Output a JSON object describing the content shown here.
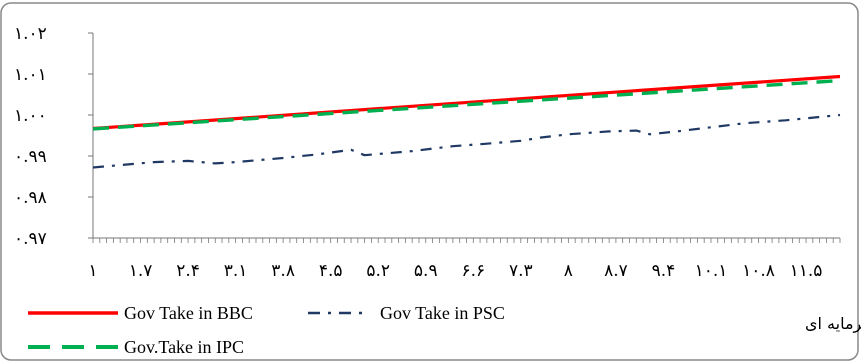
{
  "chart_data": {
    "type": "line",
    "title": "",
    "xlabel": "",
    "ylabel": "",
    "x_tick_labels": [
      "1",
      "1.7",
      "2.4",
      "3.1",
      "3.8",
      "4.5",
      "5.2",
      "5.9",
      "6.6",
      "7.3",
      "8",
      "8.7",
      "9.4",
      "10.1",
      "10.8",
      "11.5"
    ],
    "x_tick_labels_display": [
      "۱",
      "۱.۷",
      "۲.۴",
      "۳.۱",
      "۳.۸",
      "۴.۵",
      "۵.۲",
      "۵.۹",
      "۶.۶",
      "۷.۳",
      "۸",
      "۸.۷",
      "۹.۴",
      "۱۰.۱",
      "۱۰.۸",
      "۱۱.۵"
    ],
    "xlim": [
      1,
      12
    ],
    "y_tick_values": [
      0.97,
      0.98,
      0.99,
      1.0,
      1.01,
      1.02
    ],
    "y_tick_labels": [
      "۰.۹۷",
      "۰.۹۸",
      "۰.۹۹",
      "۱.۰۰",
      "۱.۰۱",
      "۱.۰۲"
    ],
    "ylim": [
      0.97,
      1.02
    ],
    "grid": false,
    "legend_position": "bottom",
    "legend_caption": "تغییرات هزینه های سرمایه ای",
    "series": [
      {
        "name": "Gov Take in BBC",
        "color": "#ff0000",
        "style": "solid",
        "x": [
          1,
          12
        ],
        "y": [
          0.9967,
          1.0094
        ]
      },
      {
        "name": "Gov Take in PSC",
        "color": "#1f3864",
        "style": "dashdot",
        "x": [
          1,
          1.9,
          2.4,
          2.8,
          3.1,
          3.8,
          4.3,
          4.8,
          5.0,
          5.7,
          6.3,
          6.8,
          7.3,
          7.6,
          8.0,
          8.6,
          9.0,
          9.2,
          9.6,
          10.1,
          10.6,
          11.2,
          12
        ],
        "y": [
          0.9872,
          0.9885,
          0.9888,
          0.9882,
          0.9885,
          0.9895,
          0.9904,
          0.9915,
          0.9902,
          0.9912,
          0.9924,
          0.993,
          0.9937,
          0.9945,
          0.9953,
          0.996,
          0.9962,
          0.9953,
          0.996,
          0.997,
          0.998,
          0.9987,
          1.0
        ]
      },
      {
        "name": "Gov.Take in IPC",
        "color": "#00b050",
        "style": "dashed",
        "x": [
          1,
          12
        ],
        "y": [
          0.9966,
          1.0084
        ]
      }
    ]
  }
}
